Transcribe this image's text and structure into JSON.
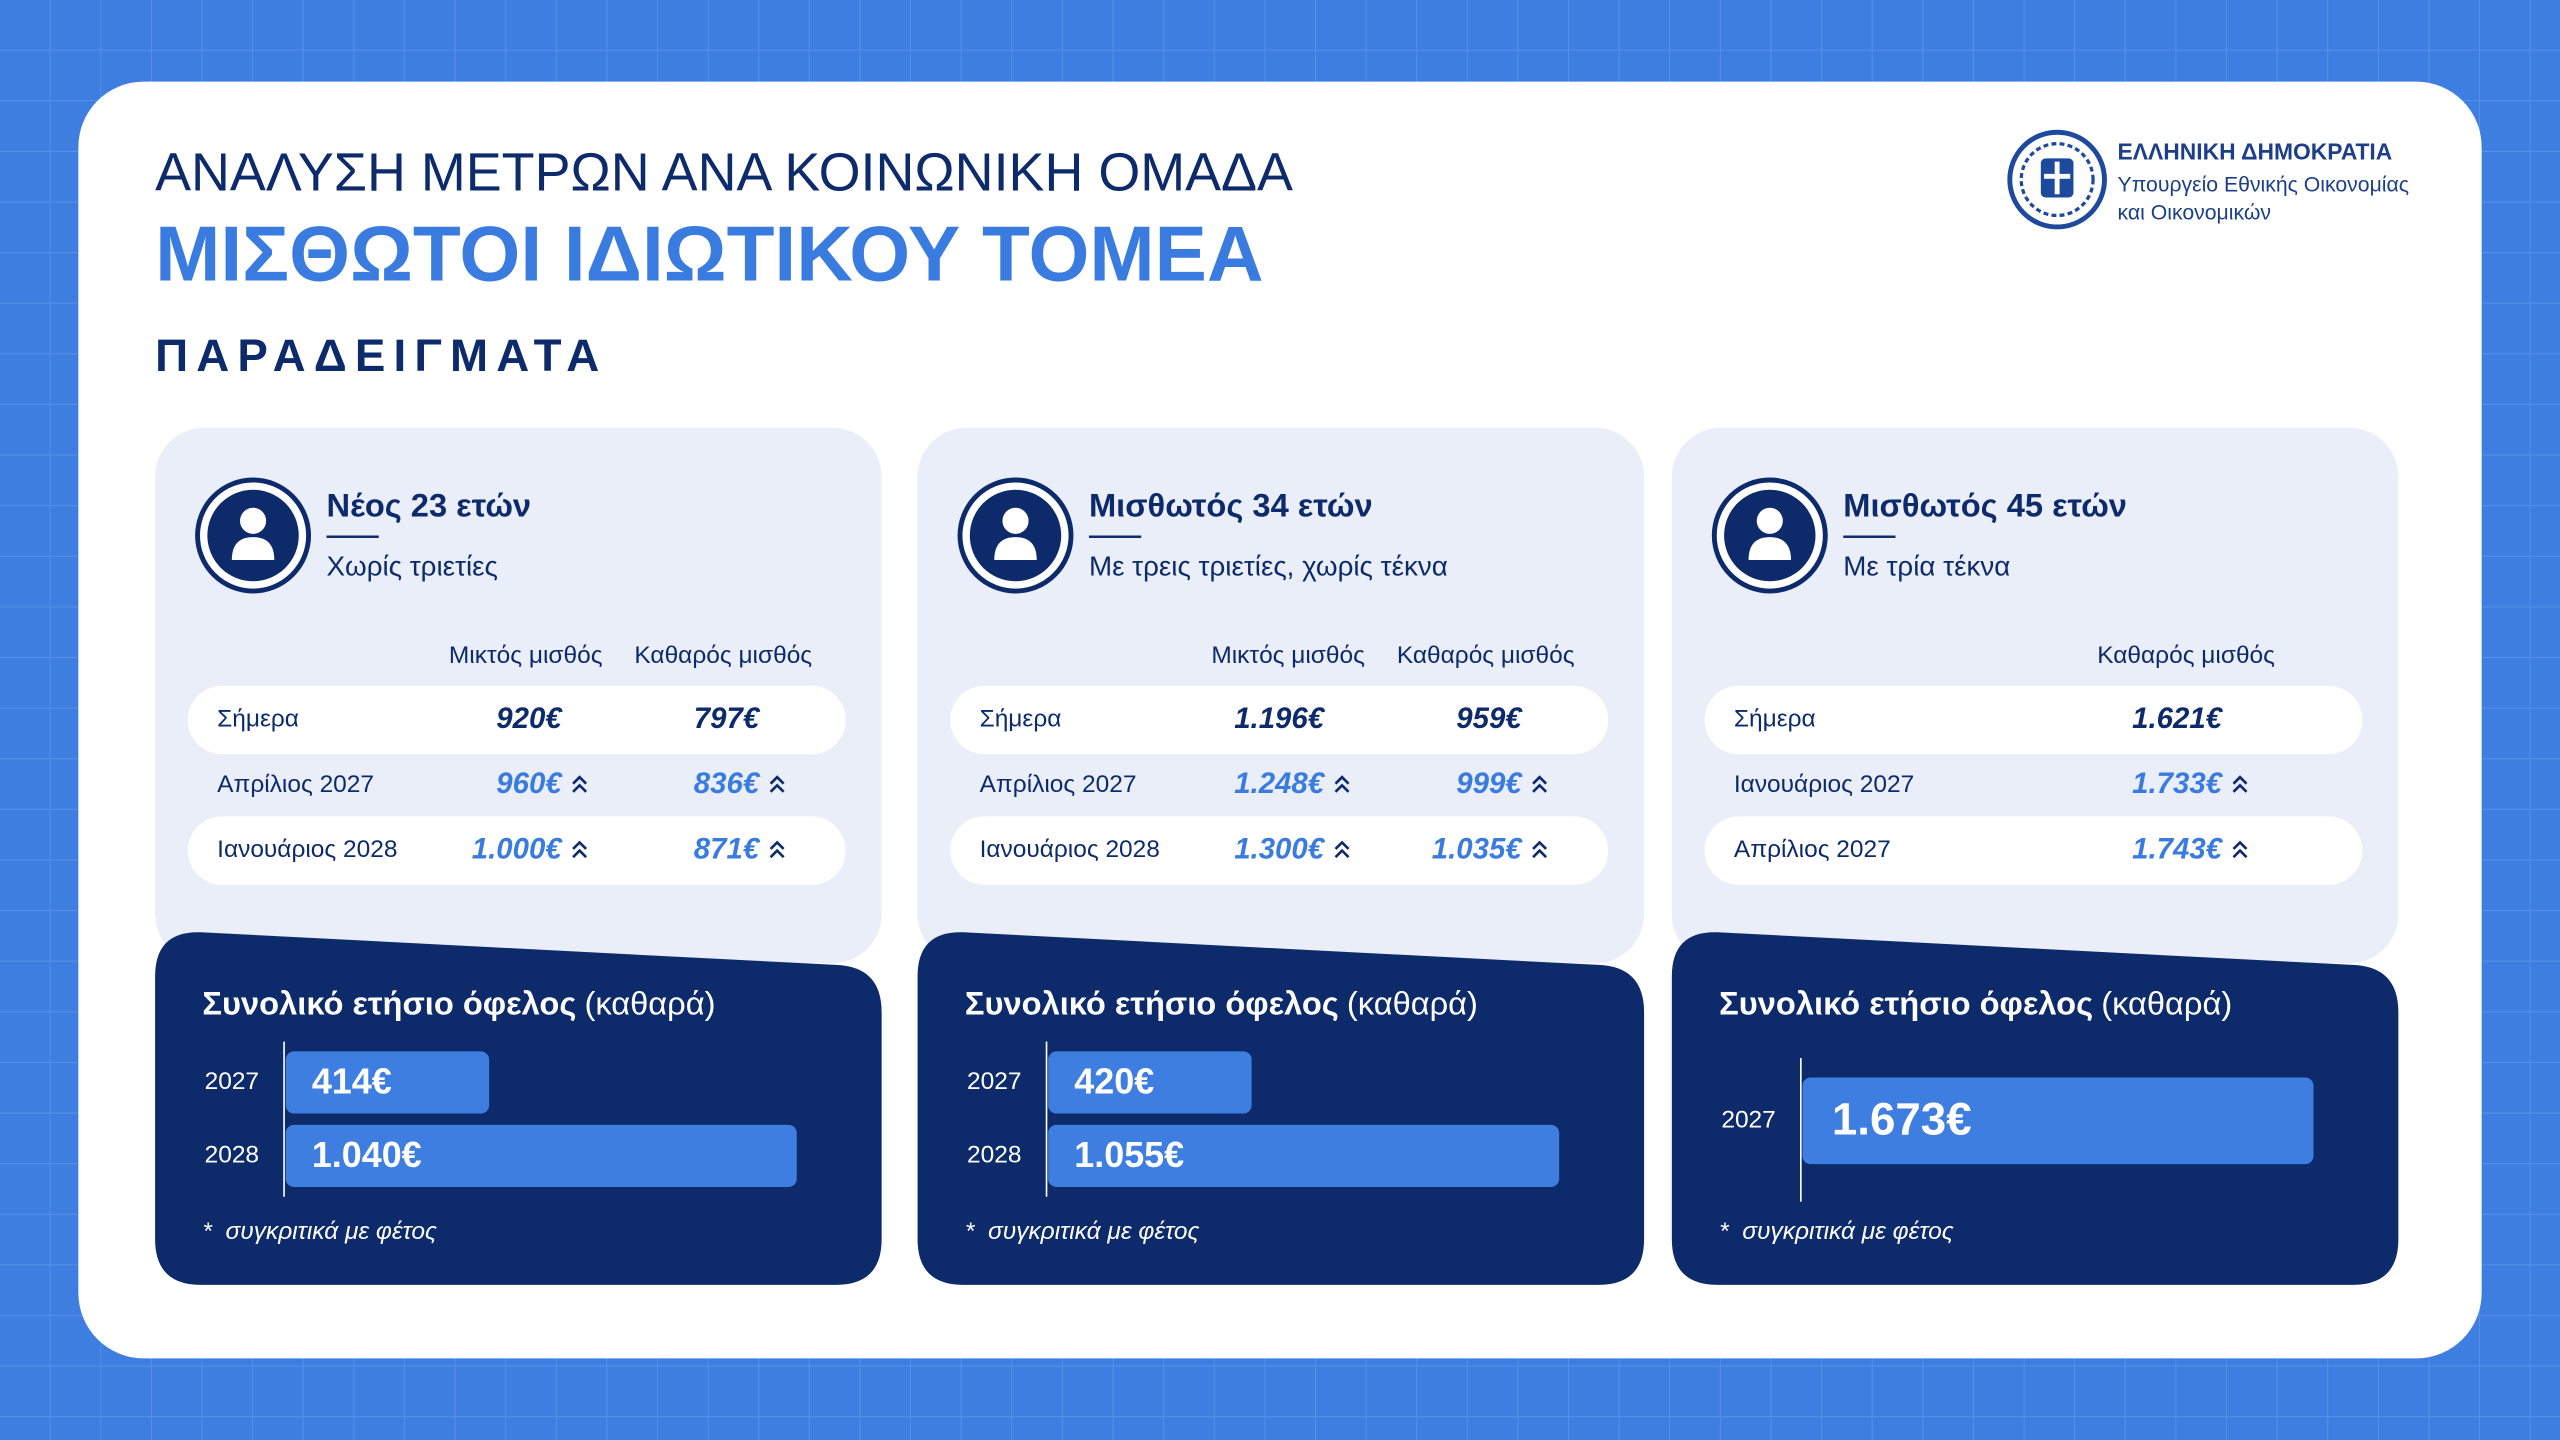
{
  "header": {
    "title": "ΑΝΑΛΥΣΗ ΜΕΤΡΩΝ ΑΝΑ ΚΟΙΝΩΝΙΚΗ ΟΜΑΔΑ",
    "subtitle": "ΜΙΣΘΩΤΟΙ ΙΔΙΩΤΙΚΟΥ ΤΟΜΕΑ",
    "section": "ΠΑΡΑΔΕΙΓΜΑΤΑ"
  },
  "logo": {
    "line1": "ΕΛΛΗΝΙΚΗ ΔΗΜΟΚΡΑΤΙΑ",
    "line2": "Υπουργείο Εθνικής Οικονομίας",
    "line3": "και Οικονομικών"
  },
  "cards": [
    {
      "name": "Νέος 23 ετών",
      "description": "Χωρίς τριετίες",
      "columns": [
        "Μικτός μισθός",
        "Καθαρός μισθός"
      ],
      "rows": [
        {
          "label": "Σήμερα",
          "values": [
            "920€",
            "797€"
          ],
          "up": false
        },
        {
          "label": "Απρίλιος 2027",
          "values": [
            "960€",
            "836€"
          ],
          "up": true
        },
        {
          "label": "Ιανουάριος 2028",
          "values": [
            "1.000€",
            "871€"
          ],
          "up": true
        }
      ],
      "benefit": {
        "title": "Συνολικό ετήσιο όφελος",
        "qualifier": "(καθαρά)",
        "bars": [
          {
            "year": "2027",
            "value": 414,
            "label": "414€"
          },
          {
            "year": "2028",
            "value": 1040,
            "label": "1.040€"
          }
        ],
        "footnote": "*  συγκριτικά με φέτος"
      }
    },
    {
      "name": "Μισθωτός 34 ετών",
      "description": "Με τρεις τριετίες, χωρίς τέκνα",
      "columns": [
        "Μικτός μισθός",
        "Καθαρός μισθός"
      ],
      "rows": [
        {
          "label": "Σήμερα",
          "values": [
            "1.196€",
            "959€"
          ],
          "up": false
        },
        {
          "label": "Απρίλιος 2027",
          "values": [
            "1.248€",
            "999€"
          ],
          "up": true
        },
        {
          "label": "Ιανουάριος 2028",
          "values": [
            "1.300€",
            "1.035€"
          ],
          "up": true
        }
      ],
      "benefit": {
        "title": "Συνολικό ετήσιο όφελος",
        "qualifier": "(καθαρά)",
        "bars": [
          {
            "year": "2027",
            "value": 420,
            "label": "420€"
          },
          {
            "year": "2028",
            "value": 1055,
            "label": "1.055€"
          }
        ],
        "footnote": "*  συγκριτικά με φέτος"
      }
    },
    {
      "name": "Μισθωτός 45 ετών",
      "description": "Με τρία τέκνα",
      "columns": [
        "Καθαρός μισθός"
      ],
      "rows": [
        {
          "label": "Σήμερα",
          "values": [
            "1.621€"
          ],
          "up": false
        },
        {
          "label": "Ιανουάριος 2027",
          "values": [
            "1.733€"
          ],
          "up": true
        },
        {
          "label": "Απρίλιος 2027",
          "values": [
            "1.743€"
          ],
          "up": true
        }
      ],
      "benefit": {
        "title": "Συνολικό ετήσιο όφελος",
        "qualifier": "(καθαρά)",
        "bars": [
          {
            "year": "2027",
            "value": 1673,
            "label": "1.673€"
          }
        ],
        "footnote": "*  συγκριτικά με φέτος"
      }
    }
  ]
}
